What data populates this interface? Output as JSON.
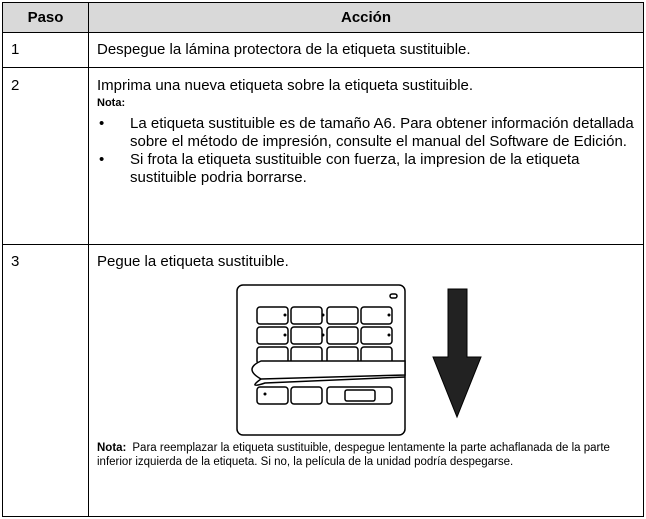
{
  "table": {
    "header": [
      "Paso",
      "Acción"
    ],
    "rows": [
      {
        "step": "1",
        "text": "Despegue la lámina protectora de la etiqueta sustituible."
      },
      {
        "step": "2",
        "text": "Imprima una nueva etiqueta sobre la etiqueta sustituible.",
        "note_label": "Nota:",
        "bullets": [
          "La etiqueta sustituible es de tamaño A6. Para obtener información detallada sobre el método de impresión, consulte el manual del Software de Edición.",
          "Si frota la etiqueta sustituible con fuerza, la impresion de la etiqueta sustituible podria borrarse."
        ]
      },
      {
        "step": "3",
        "text": "Pegue la etiqueta sustituible.",
        "note_label": "Nota:",
        "note": "Para reemplazar la etiqueta sustituible, despegue lentamente la parte achaflanada de la parte inferior izquierda de la etiqueta. Si no, la película de la unidad podría despegarse."
      }
    ]
  }
}
